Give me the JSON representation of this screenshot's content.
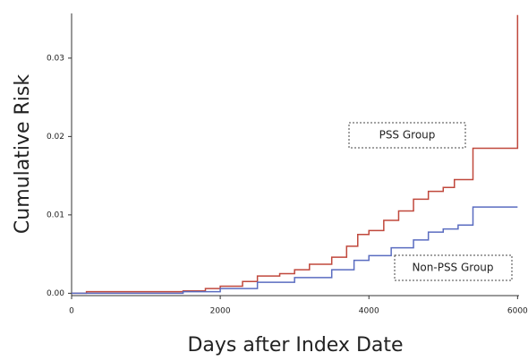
{
  "chart_data": {
    "type": "line",
    "step": true,
    "y_label": "Cumulative Risk",
    "x_label": "Days after Index Date",
    "xlim": [
      0,
      6020
    ],
    "xticks": [
      0,
      2000,
      4000,
      6000
    ],
    "ylim": [
      -0.0003,
      0.0357
    ],
    "yticks": [
      {
        "value": 0,
        "label": "0.00"
      },
      0.01,
      0.02,
      0.03
    ],
    "grid": false,
    "annotations": [
      "PSS Group",
      "Non-PSS Group"
    ],
    "series": [
      {
        "name": "PSS Group",
        "color": "#c0483c",
        "x": [
          0,
          200,
          1500,
          1800,
          2000,
          2300,
          2500,
          2800,
          3000,
          3200,
          3500,
          3700,
          3850,
          4000,
          4200,
          4400,
          4600,
          4800,
          5000,
          5150,
          5400,
          6000,
          6000
        ],
        "values": [
          0,
          0.0002,
          0.0003,
          0.0006,
          0.0009,
          0.0015,
          0.0022,
          0.0025,
          0.003,
          0.0037,
          0.0046,
          0.006,
          0.0075,
          0.008,
          0.0093,
          0.0105,
          0.012,
          0.013,
          0.0135,
          0.0145,
          0.0185,
          0.0185,
          0.0355
        ]
      },
      {
        "name": "Non-PSS Group",
        "color": "#5a6cc0",
        "x": [
          0,
          1500,
          2000,
          2500,
          3000,
          3500,
          3800,
          4000,
          4300,
          4600,
          4800,
          5000,
          5200,
          5400,
          6000,
          6000
        ],
        "values": [
          0,
          0.0002,
          0.0006,
          0.0014,
          0.002,
          0.003,
          0.0042,
          0.0048,
          0.0058,
          0.0068,
          0.0078,
          0.0082,
          0.0087,
          0.011,
          0.011,
          0.011
        ]
      }
    ]
  }
}
